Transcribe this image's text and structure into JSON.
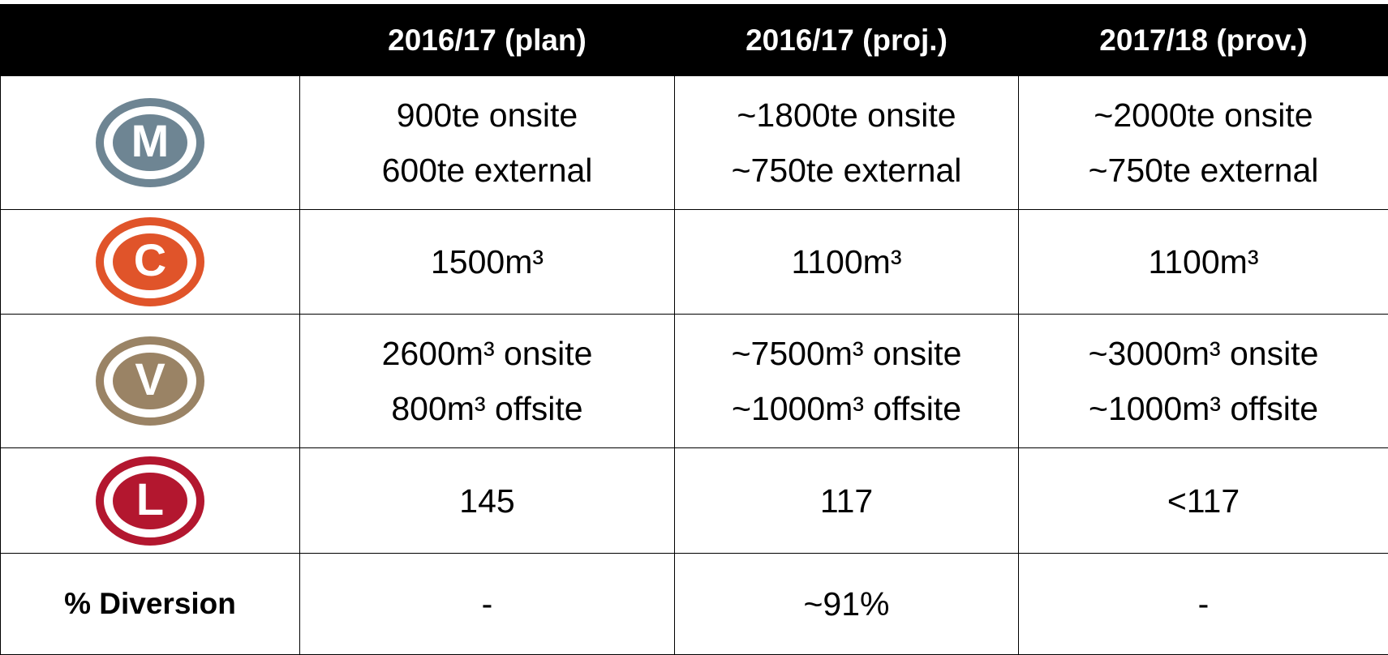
{
  "header": [
    "2016/17 (plan)",
    "2016/17 (proj.)",
    "2017/18 (prov.)"
  ],
  "rows": [
    {
      "icon": "M",
      "cells": [
        [
          "900te onsite",
          "600te external"
        ],
        [
          "~1800te onsite",
          "~750te external"
        ],
        [
          "~2000te onsite",
          "~750te external"
        ]
      ]
    },
    {
      "icon": "C",
      "cells": [
        [
          "1500m³"
        ],
        [
          "1100m³"
        ],
        [
          "1100m³"
        ]
      ]
    },
    {
      "icon": "V",
      "cells": [
        [
          "2600m³ onsite",
          "800m³ offsite"
        ],
        [
          "~7500m³ onsite",
          "~1000m³ offsite"
        ],
        [
          "~3000m³ onsite",
          "~1000m³ offsite"
        ]
      ]
    },
    {
      "icon": "L",
      "cells": [
        [
          "145"
        ],
        [
          "117"
        ],
        [
          "<117"
        ]
      ]
    },
    {
      "label": "% Diversion",
      "cells": [
        [
          "-"
        ],
        [
          "~91%"
        ],
        [
          "-"
        ]
      ]
    }
  ]
}
